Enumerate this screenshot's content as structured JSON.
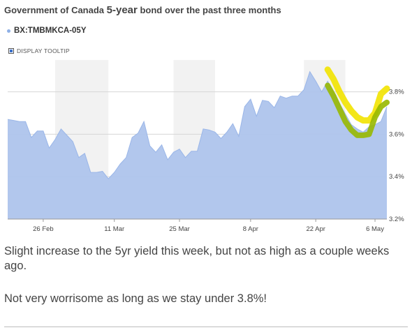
{
  "title": {
    "prefix": "Government of Canada ",
    "big": "5-year",
    "suffix": " bond over the past three months"
  },
  "legend": {
    "series_label": "BX:TMBMKCA-05Y"
  },
  "tooltip_toggle": {
    "label": "DISPLAY TOOLTIP"
  },
  "chart_data": {
    "type": "area",
    "series": [
      {
        "name": "BX:TMBMKCA-05Y",
        "color": "#aec4ec",
        "values": [
          3.67,
          3.665,
          3.66,
          3.66,
          3.585,
          3.615,
          3.615,
          3.535,
          3.575,
          3.625,
          3.595,
          3.565,
          3.49,
          3.51,
          3.42,
          3.42,
          3.425,
          3.39,
          3.42,
          3.46,
          3.49,
          3.585,
          3.605,
          3.66,
          3.545,
          3.515,
          3.55,
          3.48,
          3.515,
          3.53,
          3.49,
          3.52,
          3.52,
          3.625,
          3.62,
          3.61,
          3.58,
          3.61,
          3.65,
          3.59,
          3.73,
          3.765,
          3.685,
          3.76,
          3.755,
          3.725,
          3.78,
          3.77,
          3.78,
          3.78,
          3.81,
          3.895,
          3.85,
          3.8,
          3.85,
          3.8,
          3.745,
          3.695,
          3.645,
          3.625,
          3.61,
          3.635,
          3.645,
          3.66,
          3.73
        ]
      }
    ],
    "x_tick_labels": [
      "26 Feb",
      "11 Mar",
      "25 Mar",
      "8 Apr",
      "22 Apr",
      "6 May"
    ],
    "x_tick_indices": [
      6,
      18,
      29,
      41,
      52,
      62
    ],
    "ylim": [
      3.2,
      3.95
    ],
    "y_ticks": [
      3.2,
      3.4,
      3.6,
      3.8
    ],
    "y_tick_labels": [
      "3.2%",
      "3.4%",
      "3.6%",
      "3.8%"
    ],
    "shaded_bands_index_ranges": [
      [
        8,
        17
      ],
      [
        28,
        35
      ],
      [
        50,
        57
      ]
    ],
    "highlight": {
      "description": "hand-drawn yellow/green marker over the final two weeks",
      "yellow_color": "#f2e300",
      "green_color": "#97b800",
      "yellow_values": [
        3.905,
        3.86,
        3.8,
        3.75,
        3.71,
        3.68,
        3.665,
        3.665,
        3.7,
        3.79,
        3.815
      ],
      "green_values": [
        3.83,
        3.78,
        3.72,
        3.66,
        3.62,
        3.595,
        3.595,
        3.6,
        3.68,
        3.73,
        3.75
      ]
    }
  },
  "notes": {
    "line1": "Slight increase to the 5yr yield this week, but not as high as a couple weeks ago.",
    "line2": "Not very worrisome as long as we stay under 3.8%!"
  }
}
